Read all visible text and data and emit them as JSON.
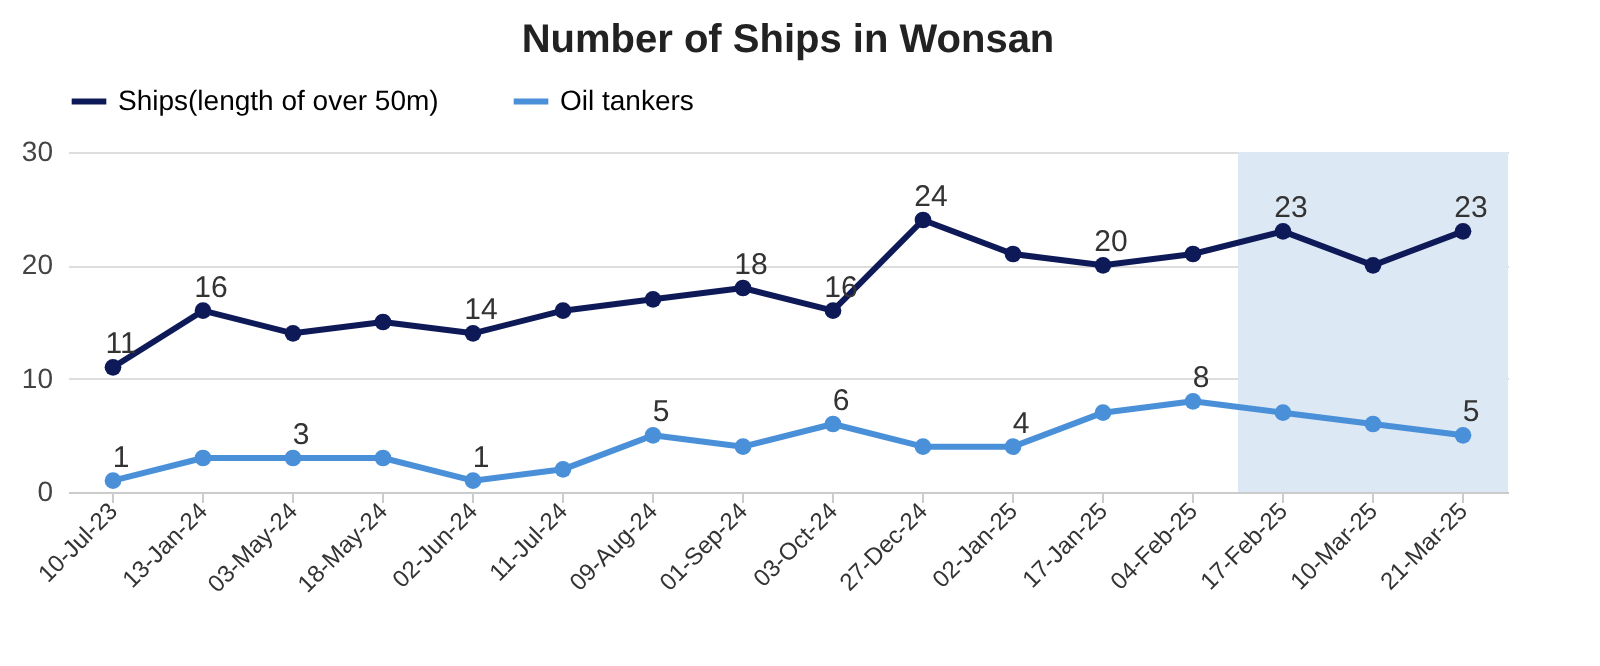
{
  "chart_data": {
    "type": "line",
    "title": "Number of Ships in Wonsan",
    "categories": [
      "10-Jul-23",
      "13-Jan-24",
      "03-May-24",
      "18-May-24",
      "02-Jun-24",
      "11-Jul-24",
      "09-Aug-24",
      "01-Sep-24",
      "03-Oct-24",
      "27-Dec-24",
      "02-Jan-25",
      "17-Jan-25",
      "04-Feb-25",
      "17-Feb-25",
      "10-Mar-25",
      "21-Mar-25"
    ],
    "series": [
      {
        "name": "Ships(length of over 50m)",
        "color": "#0e1a57",
        "values": [
          11,
          16,
          14,
          15,
          14,
          16,
          17,
          18,
          16,
          24,
          21,
          20,
          21,
          23,
          20,
          23
        ],
        "value_labels": [
          "11",
          "16",
          null,
          null,
          "14",
          null,
          null,
          "18",
          "16",
          "24",
          null,
          "20",
          null,
          "23",
          null,
          "23"
        ]
      },
      {
        "name": "Oil tankers",
        "color": "#4a90d9",
        "values": [
          1,
          3,
          3,
          3,
          1,
          2,
          5,
          4,
          6,
          4,
          4,
          7,
          8,
          7,
          6,
          5
        ],
        "value_labels": [
          "1",
          null,
          "3",
          null,
          "1",
          null,
          "5",
          null,
          "6",
          null,
          "4",
          null,
          "8",
          null,
          null,
          "5"
        ]
      }
    ],
    "ylim": [
      0,
      30
    ],
    "yticks": [
      0,
      10,
      20,
      30
    ],
    "grid": "y",
    "legend": "top",
    "marker": "circle",
    "line_style": "solid",
    "bands": [
      {
        "axis": "x",
        "from": "17-Feb-25",
        "to": "21-Mar-25",
        "color": "#dde8f5"
      }
    ]
  }
}
